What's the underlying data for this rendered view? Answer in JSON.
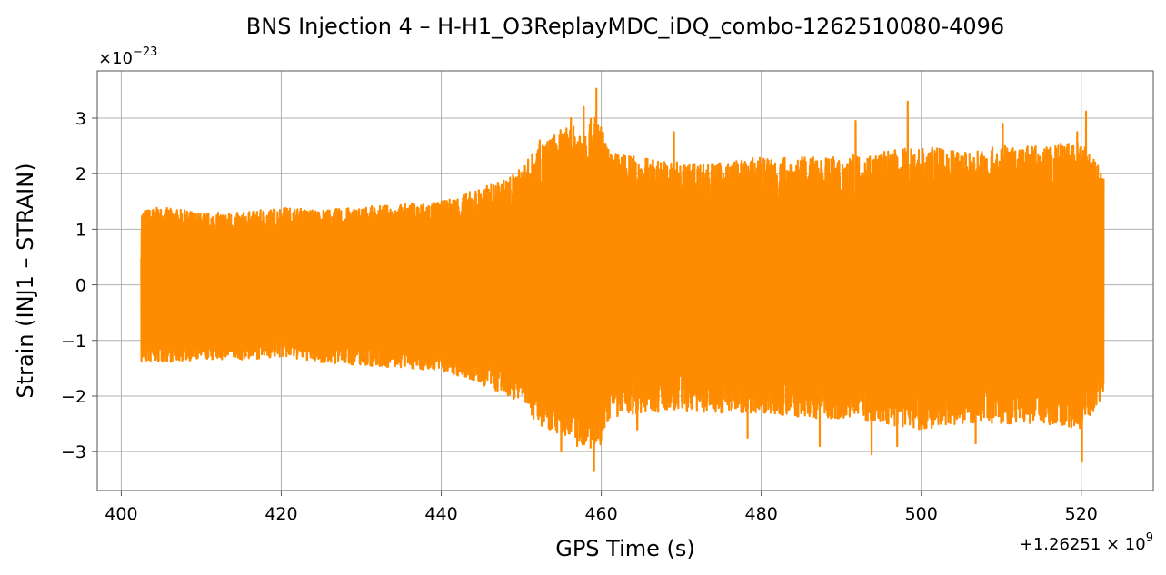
{
  "chart_data": {
    "type": "line",
    "title": "BNS Injection 4 – H-H1_O3ReplayMDC_iDQ_combo-1262510080-4096",
    "xlabel": "GPS Time (s)",
    "ylabel": "Strain (INJ1 – STRAIN)",
    "x_offset_label": "+1.26251 × 10",
    "x_offset_exponent": "9",
    "y_scale_label": "×10",
    "y_scale_exponent": "−23",
    "xlim": [
      397,
      529
    ],
    "ylim": [
      -3.7,
      3.85
    ],
    "x_ticks": [
      400,
      420,
      440,
      460,
      480,
      500,
      520
    ],
    "x_tick_labels": [
      "400",
      "420",
      "440",
      "460",
      "480",
      "500",
      "520"
    ],
    "y_ticks": [
      -3,
      -2,
      -1,
      0,
      1,
      2,
      3
    ],
    "y_tick_labels": [
      "−3",
      "−2",
      "−1",
      "0",
      "1",
      "2",
      "3"
    ],
    "grid": true,
    "color": "#ff8c00",
    "series": [
      {
        "x_range": [
          402.5,
          522.8
        ],
        "envelope": {
          "x": [
            402.5,
            405,
            410,
            415,
            420,
            425,
            430,
            435,
            440,
            445,
            448,
            450,
            452,
            455,
            458,
            459.5,
            461,
            465,
            470,
            475,
            480,
            485,
            490,
            495,
            500,
            505,
            510,
            515,
            520,
            522.8
          ],
          "upper": [
            1.35,
            1.4,
            1.3,
            1.3,
            1.4,
            1.35,
            1.4,
            1.45,
            1.5,
            1.75,
            1.9,
            2.1,
            2.5,
            2.8,
            2.9,
            3.1,
            2.4,
            2.3,
            2.2,
            2.2,
            2.3,
            2.3,
            2.3,
            2.4,
            2.5,
            2.4,
            2.5,
            2.5,
            2.6,
            2.0
          ],
          "lower": [
            -1.4,
            -1.4,
            -1.35,
            -1.35,
            -1.3,
            -1.4,
            -1.45,
            -1.5,
            -1.55,
            -1.8,
            -2.0,
            -2.1,
            -2.5,
            -2.7,
            -2.9,
            -3.1,
            -2.4,
            -2.3,
            -2.3,
            -2.3,
            -2.3,
            -2.4,
            -2.4,
            -2.5,
            -2.6,
            -2.5,
            -2.5,
            -2.5,
            -2.6,
            -2.0
          ]
        },
        "peaks": [
          {
            "x": 452.3,
            "y": 2.6
          },
          {
            "x": 456.2,
            "y": 3.0
          },
          {
            "x": 457.8,
            "y": 3.2
          },
          {
            "x": 459.4,
            "y": 3.53
          },
          {
            "x": 459.1,
            "y": -3.35
          },
          {
            "x": 455.0,
            "y": -3.0
          },
          {
            "x": 457.0,
            "y": -2.9
          },
          {
            "x": 491.8,
            "y": 2.95
          },
          {
            "x": 498.3,
            "y": 3.3
          },
          {
            "x": 497.0,
            "y": -2.9
          },
          {
            "x": 493.8,
            "y": -3.05
          },
          {
            "x": 520.6,
            "y": 3.12
          },
          {
            "x": 520.1,
            "y": -3.18
          },
          {
            "x": 510.2,
            "y": 2.9
          },
          {
            "x": 506.8,
            "y": -2.85
          },
          {
            "x": 487.3,
            "y": -2.9
          },
          {
            "x": 519.5,
            "y": 2.75
          },
          {
            "x": 469.1,
            "y": 2.75
          },
          {
            "x": 478.3,
            "y": -2.75
          },
          {
            "x": 464.5,
            "y": -2.6
          }
        ]
      }
    ]
  }
}
